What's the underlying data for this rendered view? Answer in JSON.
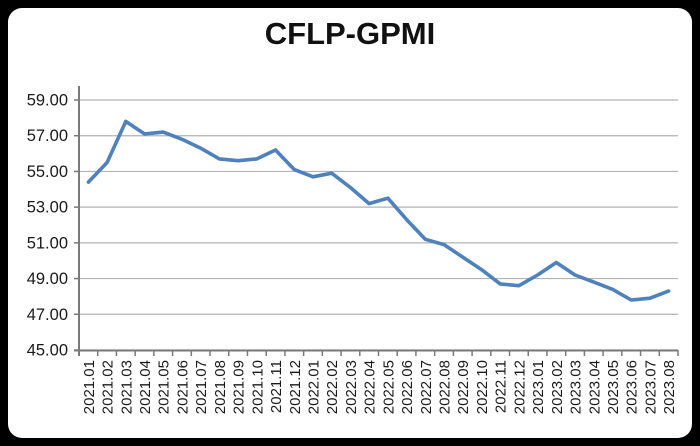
{
  "title": "CFLP-GPMI",
  "colors": {
    "line": "#4f81bd",
    "grid": "#b3b3b3",
    "axis": "#7a7a7a",
    "text": "#1a1a1a",
    "card_bg": "#ffffff",
    "frame_bg": "#000000"
  },
  "chart_data": {
    "type": "line",
    "title": "CFLP-GPMI",
    "xlabel": "",
    "ylabel": "",
    "ylim": [
      45,
      59
    ],
    "grid": "horizontal",
    "legend": "none",
    "y_ticks": [
      "59.00",
      "57.00",
      "55.00",
      "53.00",
      "51.00",
      "49.00",
      "47.00",
      "45.00"
    ],
    "categories": [
      "2021.01",
      "2021.02",
      "2021.03",
      "2021.04",
      "2021.05",
      "2021.06",
      "2021.07",
      "2021.08",
      "2021.09",
      "2021.10",
      "2021.11",
      "2021.12",
      "2022.01",
      "2022.02",
      "2022.03",
      "2022.04",
      "2022.05",
      "2022.06",
      "2022.07",
      "2022.08",
      "2022.09",
      "2022.10",
      "2022.11",
      "2022.12",
      "2023.01",
      "2023.02",
      "2023.03",
      "2023.04",
      "2023.05",
      "2023.06",
      "2023.07",
      "2023.08"
    ],
    "series": [
      {
        "name": "CFLP-GPMI",
        "values": [
          54.4,
          55.5,
          57.8,
          57.1,
          57.2,
          56.8,
          56.3,
          55.7,
          55.6,
          55.7,
          56.2,
          55.1,
          54.7,
          54.9,
          54.1,
          53.2,
          53.5,
          52.3,
          51.2,
          50.9,
          50.2,
          49.5,
          48.7,
          48.6,
          49.2,
          49.9,
          49.2,
          48.8,
          48.4,
          47.8,
          47.9,
          48.3
        ]
      }
    ]
  }
}
